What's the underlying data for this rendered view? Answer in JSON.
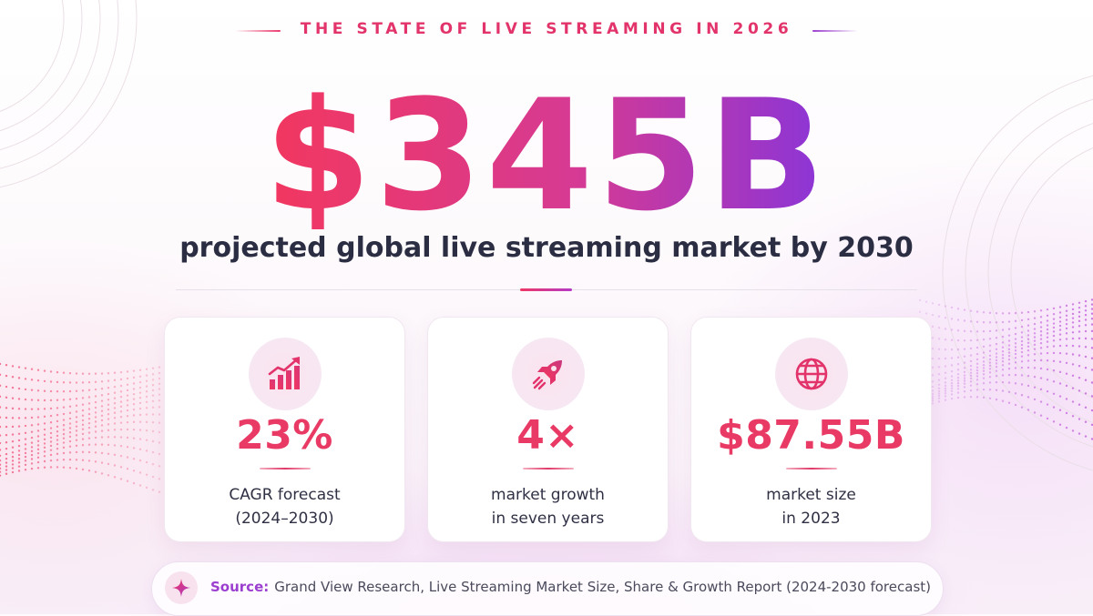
{
  "header": {
    "kicker": "THE STATE OF LIVE STREAMING IN 2026",
    "headline_value": "$345B",
    "subtitle": "projected global live streaming market by 2030"
  },
  "stats": [
    {
      "value": "23%",
      "label_line1": "CAGR forecast",
      "label_line2": "(2024–2030)",
      "icon": "growth-chart-icon"
    },
    {
      "value": "4×",
      "label_line1": "market growth",
      "label_line2": "in seven years",
      "icon": "rocket-icon"
    },
    {
      "value": "$87.55B",
      "label_line1": "market size",
      "label_line2": "in 2023",
      "icon": "globe-icon"
    }
  ],
  "source": {
    "key": "Source:",
    "text": "Grand View Research, Live Streaming Market Size, Share & Growth Report (2024-2030 forecast)",
    "icon": "sparkle-icon"
  },
  "colors": {
    "accent_pink": "#ef3766",
    "accent_purple": "#8a35d8",
    "text_dark": "#2b2d42"
  }
}
